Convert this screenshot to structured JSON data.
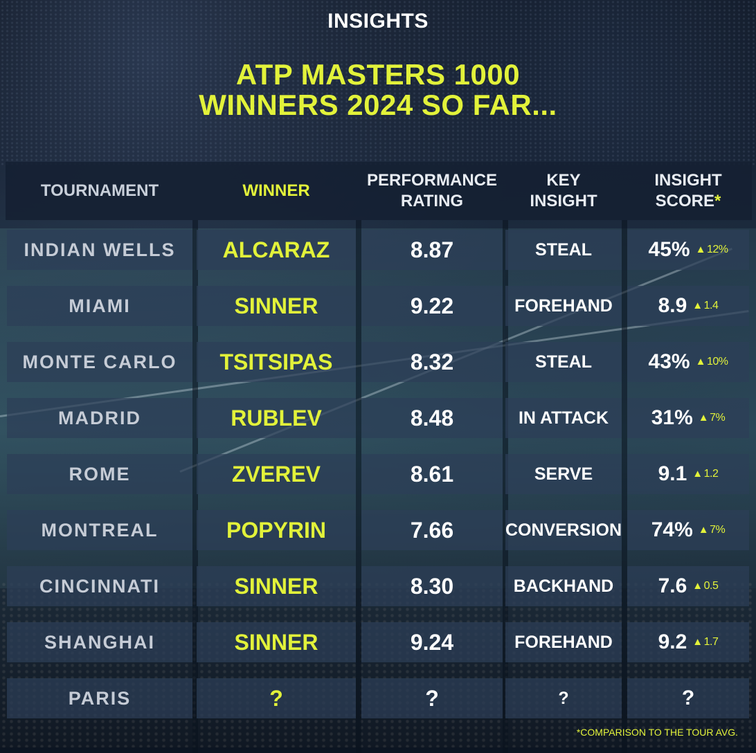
{
  "header": {
    "section": "INSIGHTS",
    "title_line1": "ATP MASTERS 1000",
    "title_line2": "WINNERS 2024 SO FAR..."
  },
  "columns": {
    "tournament": "TOURNAMENT",
    "winner": "WINNER",
    "performance": [
      "PERFORMANCE",
      "RATING"
    ],
    "key_insight": [
      "KEY",
      "INSIGHT"
    ],
    "insight_score": [
      "INSIGHT",
      "SCORE"
    ],
    "insight_score_marker": "*"
  },
  "rows": [
    {
      "tournament": "INDIAN WELLS",
      "winner": "ALCARAZ",
      "rating": "8.87",
      "insight": "STEAL",
      "score": "45%",
      "delta": "12%"
    },
    {
      "tournament": "MIAMI",
      "winner": "SINNER",
      "rating": "9.22",
      "insight": "FOREHAND",
      "score": "8.9",
      "delta": "1.4"
    },
    {
      "tournament": "MONTE CARLO",
      "winner": "TSITSIPAS",
      "rating": "8.32",
      "insight": "STEAL",
      "score": "43%",
      "delta": "10%"
    },
    {
      "tournament": "MADRID",
      "winner": "RUBLEV",
      "rating": "8.48",
      "insight": "IN ATTACK",
      "score": "31%",
      "delta": "7%"
    },
    {
      "tournament": "ROME",
      "winner": "ZVEREV",
      "rating": "8.61",
      "insight": "SERVE",
      "score": "9.1",
      "delta": "1.2"
    },
    {
      "tournament": "MONTREAL",
      "winner": "POPYRIN",
      "rating": "7.66",
      "insight": "CONVERSION",
      "score": "74%",
      "delta": "7%"
    },
    {
      "tournament": "CINCINNATI",
      "winner": "SINNER",
      "rating": "8.30",
      "insight": "BACKHAND",
      "score": "7.6",
      "delta": "0.5"
    },
    {
      "tournament": "SHANGHAI",
      "winner": "SINNER",
      "rating": "9.24",
      "insight": "FOREHAND",
      "score": "9.2",
      "delta": "1.7"
    },
    {
      "tournament": "PARIS",
      "winner": "?",
      "rating": "?",
      "insight": "?",
      "score": "?",
      "delta": ""
    }
  ],
  "delta_icon": "up-triangle-icon",
  "footnote": "*COMPARISON TO THE TOUR AVG.",
  "colors": {
    "accent": "#e2f23a",
    "cell_bg": "#2d3e58",
    "header_bg": "#142032"
  }
}
